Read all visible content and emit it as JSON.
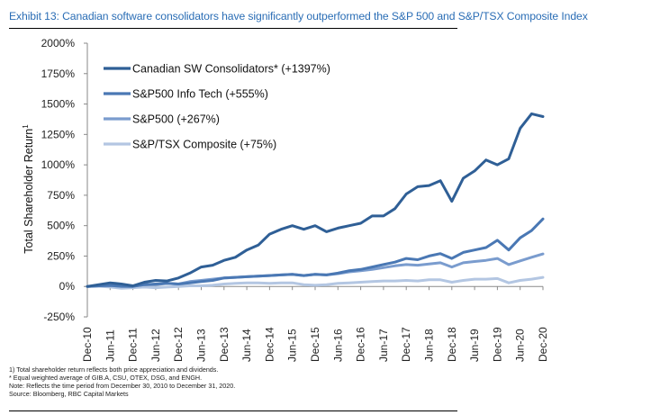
{
  "title": "Exhibit 13: Canadian software consolidators have significantly outperformed the S&P 500 and S&P/TSX Composite Index",
  "notes": [
    "1) Total shareholder return reflects both price appreciation and dividends.",
    "* Equal weighted average of GIB.A, CSU, OTEX, DSG, and ENGH.",
    "Note: Reflects the time period from December 30, 2010 to December 31, 2020.",
    "Source: Bloomberg, RBC Capital Markets"
  ],
  "chart_data": {
    "type": "line",
    "title": "Exhibit 13: Canadian software consolidators have significantly outperformed the S&P 500 and S&P/TSX Composite Index",
    "xlabel": "",
    "ylabel": "Total Shareholder Return",
    "ylabel_superscript": "1",
    "ylim": [
      -250,
      2000
    ],
    "yticks": [
      -250,
      0,
      250,
      500,
      750,
      1000,
      1250,
      1500,
      1750,
      2000
    ],
    "ytick_labels": [
      "-250%",
      "0%",
      "250%",
      "500%",
      "750%",
      "1000%",
      "1250%",
      "1500%",
      "1750%",
      "2000%"
    ],
    "xtick_labels": [
      "Dec-10",
      "Jun-11",
      "Dec-11",
      "Jun-12",
      "Dec-12",
      "Jun-13",
      "Dec-13",
      "Jun-14",
      "Dec-14",
      "Jun-15",
      "Dec-15",
      "Jun-16",
      "Dec-16",
      "Jun-17",
      "Dec-17",
      "Jun-18",
      "Dec-18",
      "Jun-19",
      "Dec-19",
      "Jun-20",
      "Dec-20"
    ],
    "x": [
      "Dec-10",
      "Mar-11",
      "Jun-11",
      "Sep-11",
      "Dec-11",
      "Mar-12",
      "Jun-12",
      "Sep-12",
      "Dec-12",
      "Mar-13",
      "Jun-13",
      "Sep-13",
      "Dec-13",
      "Mar-14",
      "Jun-14",
      "Sep-14",
      "Dec-14",
      "Mar-15",
      "Jun-15",
      "Sep-15",
      "Dec-15",
      "Mar-16",
      "Jun-16",
      "Sep-16",
      "Dec-16",
      "Mar-17",
      "Jun-17",
      "Sep-17",
      "Dec-17",
      "Mar-18",
      "Jun-18",
      "Sep-18",
      "Dec-18",
      "Mar-19",
      "Jun-19",
      "Sep-19",
      "Dec-19",
      "Mar-20",
      "Jun-20",
      "Sep-20",
      "Dec-20"
    ],
    "grid": false,
    "legend_position": "top-left",
    "series": [
      {
        "name": "Canadian SW Consolidators* (+1397%)",
        "color": "#2f5f96",
        "values": [
          0,
          15,
          30,
          20,
          5,
          35,
          50,
          45,
          70,
          110,
          160,
          175,
          215,
          240,
          300,
          340,
          430,
          470,
          500,
          470,
          500,
          450,
          480,
          500,
          520,
          580,
          580,
          640,
          760,
          820,
          830,
          870,
          700,
          890,
          950,
          1040,
          1000,
          1050,
          1300,
          1420,
          1397
        ]
      },
      {
        "name": "S&P500 Info Tech (+555%)",
        "color": "#4a78b4",
        "values": [
          0,
          5,
          8,
          2,
          0,
          15,
          20,
          25,
          20,
          30,
          40,
          50,
          70,
          75,
          80,
          85,
          90,
          95,
          100,
          90,
          100,
          95,
          110,
          130,
          140,
          160,
          180,
          200,
          230,
          220,
          250,
          270,
          230,
          280,
          300,
          320,
          380,
          300,
          400,
          460,
          555
        ]
      },
      {
        "name": "S&P500 (+267%)",
        "color": "#7a9cce",
        "values": [
          0,
          5,
          8,
          0,
          2,
          15,
          15,
          25,
          20,
          40,
          50,
          60,
          70,
          75,
          80,
          85,
          90,
          95,
          100,
          90,
          100,
          95,
          105,
          120,
          130,
          140,
          155,
          170,
          180,
          175,
          185,
          195,
          160,
          195,
          205,
          215,
          230,
          180,
          210,
          240,
          267
        ]
      },
      {
        "name": "S&P/TSX Composite (+75%)",
        "color": "#b3c6e2",
        "values": [
          0,
          2,
          -5,
          -15,
          -10,
          -5,
          -10,
          -5,
          0,
          5,
          5,
          10,
          20,
          25,
          30,
          30,
          25,
          30,
          30,
          15,
          10,
          15,
          25,
          30,
          35,
          40,
          45,
          45,
          50,
          45,
          55,
          55,
          35,
          50,
          60,
          60,
          65,
          30,
          50,
          60,
          75
        ]
      }
    ]
  }
}
